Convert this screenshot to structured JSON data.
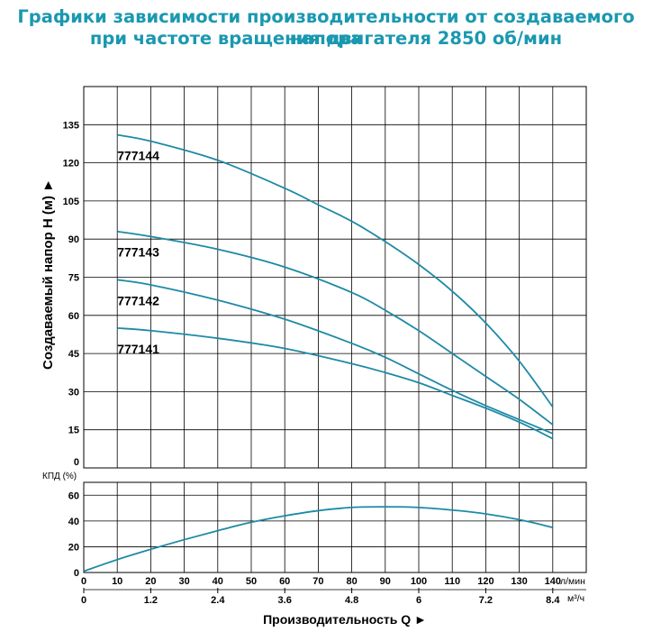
{
  "title_line1": "Графики зависимости производительности от создаваемого напора",
  "title_line2": "при частоте вращения двигателя 2850 об/мин",
  "colors": {
    "curve": "#1e8aa5",
    "grid": "#000000",
    "title": "#1a98b0"
  },
  "chart_data": [
    {
      "type": "line",
      "ylabel": "Создаваемый напор H (м) ►",
      "xlim": [
        0,
        150
      ],
      "ylim": [
        0,
        150
      ],
      "yticks": [
        "0",
        "15",
        "30",
        "45",
        "60",
        "75",
        "90",
        "105",
        "120",
        "135"
      ],
      "grid": true,
      "series": [
        {
          "name": "777144",
          "x": [
            10,
            20,
            40,
            60,
            70,
            80,
            90,
            100,
            110,
            120,
            130,
            140
          ],
          "y": [
            131,
            128.5,
            121,
            110,
            103.5,
            97,
            89,
            80,
            69.5,
            57,
            42,
            24
          ]
        },
        {
          "name": "777143",
          "x": [
            10,
            20,
            40,
            60,
            80,
            90,
            100,
            110,
            120,
            130,
            140
          ],
          "y": [
            93,
            91,
            86,
            79,
            69,
            62,
            54,
            45,
            36,
            27,
            17
          ]
        },
        {
          "name": "777142",
          "x": [
            10,
            20,
            40,
            60,
            80,
            90,
            100,
            110,
            120,
            130,
            140
          ],
          "y": [
            74,
            72,
            66,
            58.5,
            49,
            43.5,
            37,
            30.5,
            24.5,
            19,
            13.5
          ]
        },
        {
          "name": "777141",
          "x": [
            10,
            20,
            40,
            60,
            80,
            90,
            100,
            110,
            120,
            130,
            140
          ],
          "y": [
            55,
            54,
            51,
            47,
            41,
            37.5,
            33.5,
            28.5,
            23.5,
            18,
            11.5
          ]
        }
      ]
    },
    {
      "type": "line",
      "ylabel": "КПД (%)",
      "xlabel": "Производительность Q ►",
      "x_unit": "л/мин",
      "x2_unit": "м³/ч",
      "xlim": [
        0,
        150
      ],
      "ylim": [
        0,
        70
      ],
      "yticks": [
        "0",
        "20",
        "40",
        "60"
      ],
      "xticks": [
        "0",
        "10",
        "20",
        "30",
        "40",
        "50",
        "60",
        "70",
        "80",
        "90",
        "100",
        "110",
        "120",
        "130",
        "140"
      ],
      "x2ticks": [
        "0",
        "1.2",
        "2.4",
        "3.6",
        "4.8",
        "6",
        "7.2",
        "8.4"
      ],
      "grid": true,
      "series": [
        {
          "name": "",
          "x": [
            0,
            10,
            20,
            30,
            40,
            50,
            60,
            70,
            80,
            90,
            100,
            110,
            120,
            130,
            140
          ],
          "y": [
            1,
            10,
            18,
            25.5,
            32.5,
            39,
            44,
            48,
            50.5,
            51,
            50.5,
            48.5,
            45.5,
            41,
            35
          ]
        }
      ]
    }
  ]
}
